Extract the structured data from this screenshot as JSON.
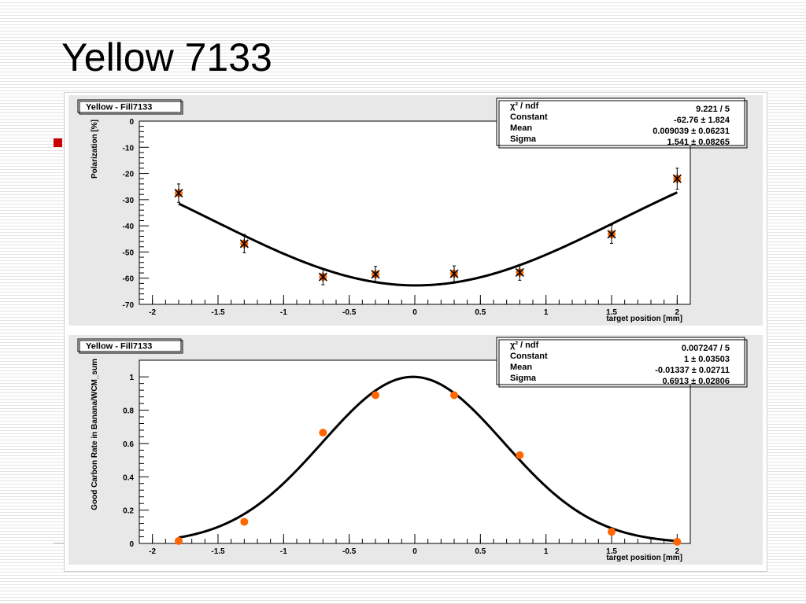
{
  "slide": {
    "title": "Yellow 7133"
  },
  "colors": {
    "pad_background": "#e8e8e8",
    "frame_background": "#ffffff",
    "curve": "#000000",
    "marker": "#ff6600",
    "bullet": "#cc0000"
  },
  "chart_data": [
    {
      "type": "scatter",
      "panel_title": "Yellow - Fill7133",
      "xlabel": "target position [mm]",
      "ylabel": "Polarization [%]",
      "xlim": [
        -2.1,
        2.1
      ],
      "ylim": [
        -70,
        0
      ],
      "x_ticks": [
        -2,
        -1.5,
        -1,
        -0.5,
        0,
        0.5,
        1,
        1.5,
        2
      ],
      "x_tick_labels": [
        "-2",
        "-1.5",
        "-1",
        "-0.5",
        "0",
        "0.5",
        "1",
        "1.5",
        "2"
      ],
      "y_ticks": [
        0,
        -10,
        -20,
        -30,
        -40,
        -50,
        -60,
        -70
      ],
      "y_tick_labels": [
        "0",
        "-10",
        "-20",
        "-30",
        "-40",
        "-50",
        "-60",
        "-70"
      ],
      "marker": "star-with-error-bars",
      "points": [
        {
          "x": -1.8,
          "y": -27.5,
          "err": 3.5
        },
        {
          "x": -1.3,
          "y": -46.8,
          "err": 3.5
        },
        {
          "x": -0.7,
          "y": -59.5,
          "err": 3.0
        },
        {
          "x": -0.3,
          "y": -58.5,
          "err": 3.0
        },
        {
          "x": 0.3,
          "y": -58.3,
          "err": 3.0
        },
        {
          "x": 0.8,
          "y": -57.8,
          "err": 3.0
        },
        {
          "x": 1.5,
          "y": -43.2,
          "err": 3.5
        },
        {
          "x": 2.0,
          "y": -22.0,
          "err": 4.0
        }
      ],
      "fit": {
        "function": "gaussian",
        "constant": -62.76,
        "mean": 0.009039,
        "sigma": 1.541,
        "x_range": [
          -1.8,
          2.0
        ]
      },
      "stats": [
        {
          "label": "χ² / ndf",
          "value": "9.221 / 5"
        },
        {
          "label": "Constant",
          "value": "-62.76  ± 1.824"
        },
        {
          "label": "Mean",
          "value": "0.009039  ± 0.06231"
        },
        {
          "label": "Sigma",
          "value": "1.541  ± 0.08265"
        }
      ]
    },
    {
      "type": "scatter",
      "panel_title": "Yellow - Fill7133",
      "xlabel": "target position [mm]",
      "ylabel": "Good Carbon Rate in Banana/WCM_sum",
      "xlim": [
        -2.1,
        2.1
      ],
      "ylim": [
        0,
        1.1
      ],
      "x_ticks": [
        -2,
        -1.5,
        -1,
        -0.5,
        0,
        0.5,
        1,
        1.5,
        2
      ],
      "x_tick_labels": [
        "-2",
        "-1.5",
        "-1",
        "-0.5",
        "0",
        "0.5",
        "1",
        "1.5",
        "2"
      ],
      "y_ticks": [
        0,
        0.2,
        0.4,
        0.6,
        0.8,
        1
      ],
      "y_tick_labels": [
        "0",
        "0.2",
        "0.4",
        "0.6",
        "0.8",
        "1"
      ],
      "marker": "dot",
      "points": [
        {
          "x": -1.8,
          "y": 0.015
        },
        {
          "x": -1.3,
          "y": 0.13
        },
        {
          "x": -0.7,
          "y": 0.665
        },
        {
          "x": -0.3,
          "y": 0.89
        },
        {
          "x": 0.3,
          "y": 0.89
        },
        {
          "x": 0.8,
          "y": 0.53
        },
        {
          "x": 1.5,
          "y": 0.07
        },
        {
          "x": 2.0,
          "y": 0.01
        }
      ],
      "fit": {
        "function": "gaussian",
        "constant": 1,
        "mean": -0.01337,
        "sigma": 0.6913,
        "x_range": [
          -1.8,
          2.0
        ]
      },
      "stats": [
        {
          "label": "χ² / ndf",
          "value": "0.007247 / 5"
        },
        {
          "label": "Constant",
          "value": "1  ± 0.03503"
        },
        {
          "label": "Mean",
          "value": "-0.01337  ± 0.02711"
        },
        {
          "label": "Sigma",
          "value": "0.6913  ± 0.02806"
        }
      ]
    }
  ]
}
